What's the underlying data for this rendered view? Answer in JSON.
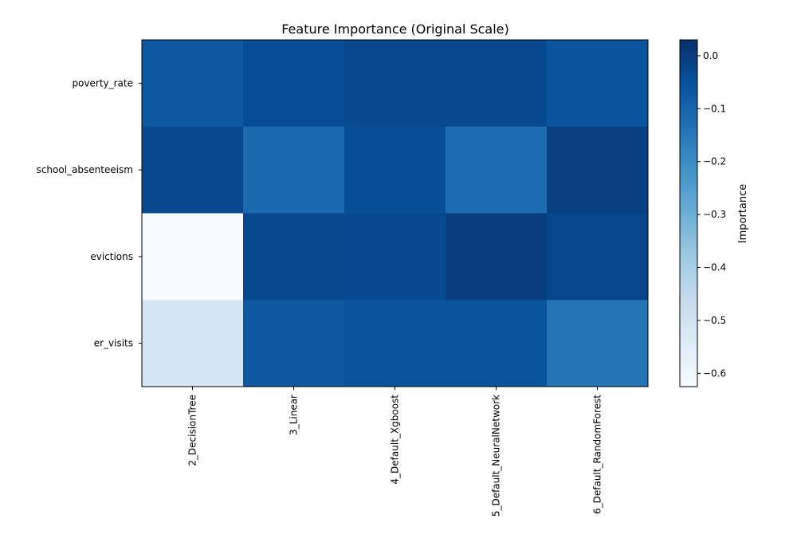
{
  "chart_data": {
    "type": "heatmap",
    "title": "Feature Importance (Original Scale)",
    "rows": [
      "poverty_rate",
      "school_absenteeism",
      "evictions",
      "er_visits"
    ],
    "columns": [
      "2_DecisionTree",
      "3_Linear",
      "4_Default_Xgboost",
      "5_Default_NeuralNetwork",
      "6_Default_RandomForest"
    ],
    "values": [
      [
        -0.07,
        -0.04,
        -0.03,
        -0.03,
        -0.06
      ],
      [
        -0.03,
        -0.11,
        -0.04,
        -0.12,
        -0.01
      ],
      [
        -0.625,
        -0.03,
        -0.035,
        -0.005,
        -0.025
      ],
      [
        -0.51,
        -0.07,
        -0.06,
        -0.06,
        -0.14
      ]
    ],
    "colorbar": {
      "label": "Importance",
      "range": [
        -0.625,
        0.03
      ],
      "ticks": [
        0.0,
        -0.1,
        -0.2,
        -0.3,
        -0.4,
        -0.5,
        -0.6
      ],
      "tick_labels": [
        "0.0",
        "−0.1",
        "−0.2",
        "−0.3",
        "−0.4",
        "−0.5",
        "−0.6"
      ],
      "colormap": "Blues"
    },
    "grid": false
  }
}
